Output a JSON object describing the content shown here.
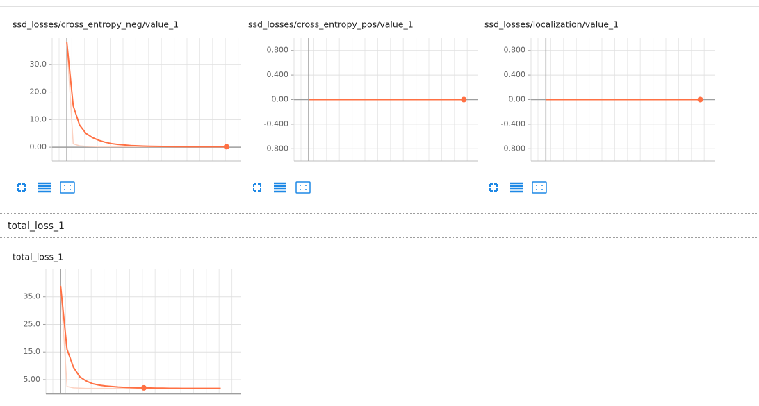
{
  "chart_data": [
    {
      "type": "line",
      "title": "ssd_losses/cross_entropy_neg/value_1",
      "x": [
        0,
        1,
        2,
        3,
        4,
        5,
        6,
        7,
        8,
        9,
        10,
        11,
        12,
        13,
        14,
        15,
        16,
        17,
        18,
        19,
        20,
        21,
        22,
        23,
        24,
        25
      ],
      "series": [
        {
          "color": "#fcd2c2",
          "values": [
            38,
            1.2,
            0.5,
            0.3,
            0.25,
            0.2,
            0.2,
            0.2,
            0.2,
            0.2,
            0.2,
            0.2,
            0.2,
            0.2,
            0.2,
            0.2,
            0.2,
            0.2,
            0.2,
            0.2,
            0.2,
            0.2,
            0.2,
            0.2,
            0.2,
            0.2
          ]
        },
        {
          "color": "#ff7043",
          "values": [
            38,
            15,
            8,
            5,
            3.5,
            2.5,
            1.8,
            1.3,
            1,
            0.8,
            0.6,
            0.5,
            0.4,
            0.35,
            0.3,
            0.28,
            0.25,
            0.23,
            0.22,
            0.2,
            0.2,
            0.2,
            0.2,
            0.2,
            0.2,
            0.2
          ]
        }
      ],
      "marker_x": 25,
      "xlim": [
        -2.3,
        27.3
      ],
      "ylim": [
        -5,
        39.5
      ],
      "yticks": [
        {
          "value": 0,
          "label": "0.00"
        },
        {
          "value": 10,
          "label": "10.0"
        },
        {
          "value": 20,
          "label": "20.0"
        },
        {
          "value": 30,
          "label": "30.0"
        }
      ],
      "grid": true
    },
    {
      "type": "line",
      "title": "ssd_losses/cross_entropy_pos/value_1",
      "x": [
        0,
        1,
        2,
        3,
        4,
        5,
        6,
        7,
        8,
        9,
        10,
        11,
        12,
        13,
        14,
        15,
        16,
        17,
        18,
        19,
        20,
        21,
        22,
        23,
        24,
        25
      ],
      "series": [
        {
          "color": "#ff7043",
          "values": [
            0,
            0,
            0,
            0,
            0,
            0,
            0,
            0,
            0,
            0,
            0,
            0,
            0,
            0,
            0,
            0,
            0,
            0,
            0,
            0,
            0,
            0,
            0,
            0,
            0,
            0
          ]
        }
      ],
      "marker_x": 25,
      "xlim": [
        -2.35,
        27.2
      ],
      "ylim": [
        -1,
        1
      ],
      "yticks": [
        {
          "value": -0.8,
          "label": "-0.800"
        },
        {
          "value": -0.4,
          "label": "-0.400"
        },
        {
          "value": 0,
          "label": "0.00"
        },
        {
          "value": 0.4,
          "label": "0.400"
        },
        {
          "value": 0.8,
          "label": "0.800"
        }
      ],
      "grid": true
    },
    {
      "type": "line",
      "title": "ssd_losses/localization/value_1",
      "x": [
        0,
        1,
        2,
        3,
        4,
        5,
        6,
        7,
        8,
        9,
        10,
        11,
        12,
        13,
        14,
        15,
        16,
        17,
        18,
        19,
        20,
        21,
        22,
        23,
        24,
        25
      ],
      "series": [
        {
          "color": "#ff7043",
          "values": [
            0,
            0,
            0,
            0,
            0,
            0,
            0,
            0,
            0,
            0,
            0,
            0,
            0,
            0,
            0,
            0,
            0,
            0,
            0,
            0,
            0,
            0,
            0,
            0,
            0,
            0
          ]
        }
      ],
      "marker_x": 25,
      "xlim": [
        -2.4,
        27.3
      ],
      "ylim": [
        -1,
        1
      ],
      "yticks": [
        {
          "value": -0.8,
          "label": "-0.800"
        },
        {
          "value": -0.4,
          "label": "-0.400"
        },
        {
          "value": 0,
          "label": "0.00"
        },
        {
          "value": 0.4,
          "label": "0.400"
        },
        {
          "value": 0.8,
          "label": "0.800"
        }
      ],
      "grid": true
    },
    {
      "type": "line",
      "title": "total_loss_1",
      "x": [
        0,
        1,
        2,
        3,
        4,
        5,
        6,
        7,
        8,
        9,
        10,
        11,
        12,
        13,
        14,
        15,
        16,
        17,
        18,
        19,
        20,
        21,
        22,
        23,
        24,
        25
      ],
      "series": [
        {
          "color": "#fcd2c2",
          "values": [
            39,
            2.5,
            2,
            1.9,
            1.8,
            1.8,
            1.8,
            1.8,
            1.8,
            1.8,
            1.8,
            1.8,
            1.8,
            1.8,
            1.8,
            1.8,
            1.8,
            1.8,
            1.8,
            1.8,
            1.8,
            1.8,
            1.8,
            1.8,
            1.8,
            1.8
          ]
        },
        {
          "color": "#ff7043",
          "values": [
            39,
            16,
            9.5,
            6,
            4.5,
            3.5,
            3,
            2.7,
            2.5,
            2.3,
            2.2,
            2.1,
            2,
            2,
            1.95,
            1.9,
            1.9,
            1.85,
            1.85,
            1.8,
            1.8,
            1.8,
            1.8,
            1.8,
            1.8,
            1.8
          ]
        }
      ],
      "marker_x": 13,
      "xlim": [
        -2.3,
        28.2
      ],
      "ylim": [
        -0.3,
        45
      ],
      "yticks": [
        {
          "value": 5,
          "label": "5.00"
        },
        {
          "value": 15,
          "label": "15.0"
        },
        {
          "value": 25,
          "label": "25.0"
        },
        {
          "value": 35,
          "label": "35.0"
        }
      ],
      "grid": true
    }
  ],
  "section_title": "total_loss_1"
}
